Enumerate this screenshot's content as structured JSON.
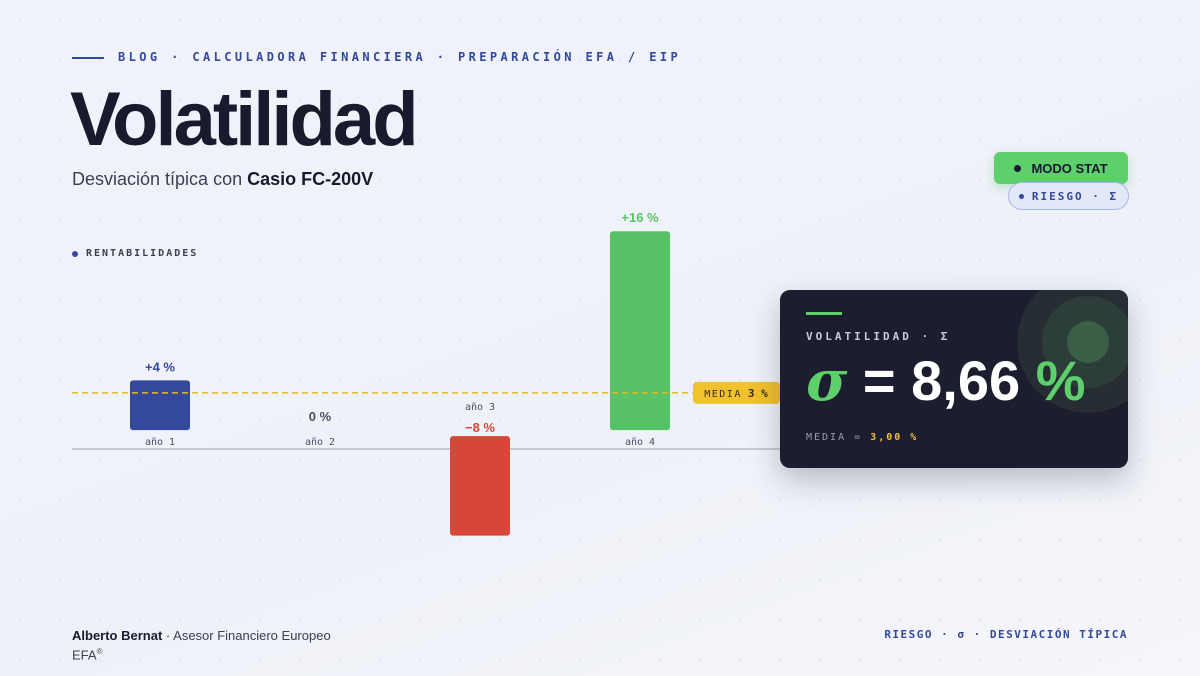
{
  "header": {
    "breadcrumb": "BLOG · CALCULADORA FINANCIERA · PREPARACIÓN EFA / EIP",
    "title": "Volatilidad",
    "subtitle": "Desviación típica con",
    "subtitle_strong": "Casio FC-200V"
  },
  "badges": {
    "mode": "MODO STAT",
    "tag": "RIESGO · Σ"
  },
  "chart_data": {
    "type": "bar",
    "name": "RENTABILIDADES",
    "categories": [
      "año 1",
      "año 2",
      "año 3",
      "año 4"
    ],
    "values": [
      4,
      0,
      -8,
      16
    ],
    "value_labels": [
      "+4 %",
      "0 %",
      "−8 %",
      "+16 %"
    ],
    "colors": [
      "#34489c",
      "#4a4f63",
      "#d8463a",
      "#58c266"
    ],
    "ylim": [
      -9,
      16.5
    ],
    "mean": {
      "value": 3,
      "label": "3 %"
    },
    "mean_title": "MEDIA"
  },
  "card": {
    "label": "VOLATILIDAD · Σ",
    "symbol": "σ",
    "equals": "=",
    "value": "8,66",
    "unit": "%",
    "mean_label": "MEDIA =",
    "mean_value": "3,00 %"
  },
  "footer": {
    "author": "Alberto Bernat",
    "role": "· Asesor Financiero Europeo",
    "cert": "EFA",
    "cert_mark": "®",
    "topic": "RIESGO · σ · DESVIACIÓN TÍPICA"
  }
}
